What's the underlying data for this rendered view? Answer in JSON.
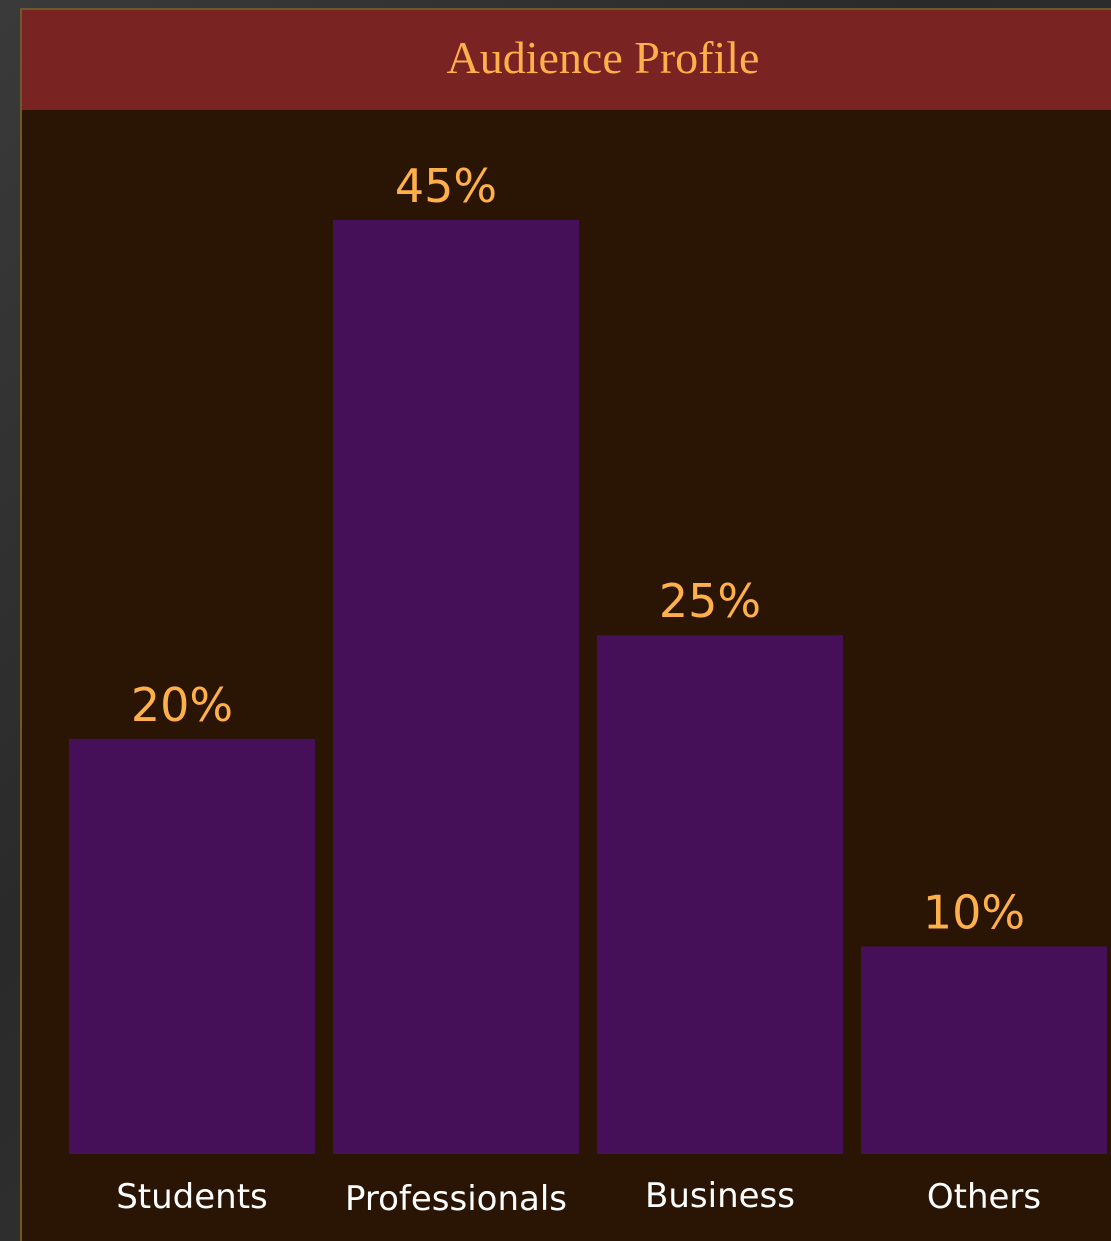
{
  "title": "Audience Profile",
  "colors": {
    "title_bar": "#7a2323",
    "title_text": "#ffb04a",
    "panel_bg": "#2a1505",
    "bar": "#461058",
    "value_label": "#ffb04a",
    "category_label": "#ffffff"
  },
  "chart_data": {
    "type": "bar",
    "title": "Audience Profile",
    "categories": [
      "Students",
      "Professionals",
      "Business",
      "Others"
    ],
    "values": [
      20,
      45,
      25,
      10
    ],
    "value_labels": [
      "20%",
      "45%",
      "25%",
      "10%"
    ],
    "xlabel": "",
    "ylabel": "",
    "ylim": [
      0,
      50
    ],
    "grid": false,
    "legend": "none"
  }
}
